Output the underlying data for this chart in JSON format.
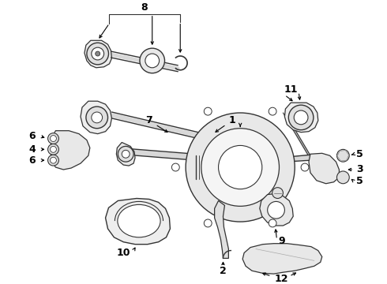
{
  "background_color": "#ffffff",
  "line_color": "#333333",
  "label_color": "#000000",
  "figsize": [
    4.9,
    3.6
  ],
  "dpi": 100
}
